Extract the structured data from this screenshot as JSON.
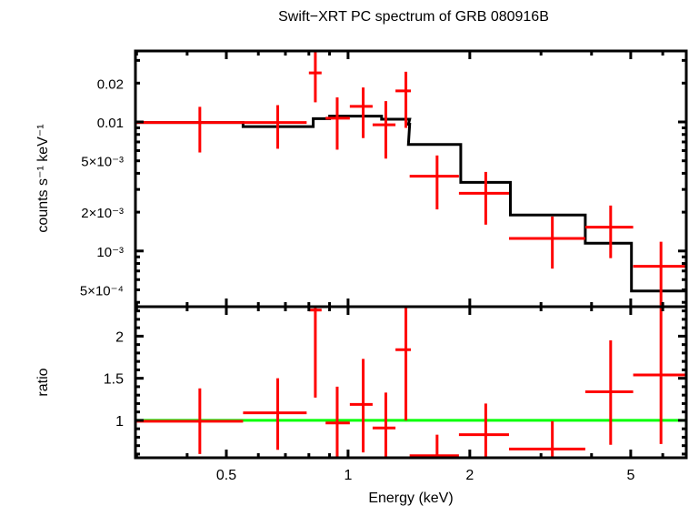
{
  "chart_data": [
    {
      "panel": "spectrum",
      "type": "scatter",
      "title": "Swift−XRT PC spectrum of GRB 080916B",
      "xlabel": "Energy (keV)",
      "ylabel": "counts s⁻¹ keV⁻¹",
      "xscale": "log",
      "yscale": "log",
      "xlim": [
        0.298,
        6.86
      ],
      "ylim": [
        0.00037,
        0.0355
      ],
      "yticks": [
        {
          "value": 0.02,
          "label": "0.02"
        },
        {
          "value": 0.01,
          "label": "0.01"
        },
        {
          "value": 0.005,
          "label": "5×10⁻³"
        },
        {
          "value": 0.002,
          "label": "2×10⁻³"
        },
        {
          "value": 0.001,
          "label": "10⁻³"
        },
        {
          "value": 0.0005,
          "label": "5×10⁻⁴"
        }
      ],
      "series": [
        {
          "name": "data",
          "color": "#ff0000",
          "points": [
            {
              "x": 0.43,
              "xlo": 0.298,
              "xhi": 0.55,
              "y": 0.0099,
              "ylo": 0.0058,
              "yhi": 0.0131
            },
            {
              "x": 0.67,
              "xlo": 0.55,
              "xhi": 0.79,
              "y": 0.0099,
              "ylo": 0.0062,
              "yhi": 0.0135
            },
            {
              "x": 0.83,
              "xlo": 0.8,
              "xhi": 0.86,
              "y": 0.024,
              "ylo": 0.0142,
              "yhi": 0.0355
            },
            {
              "x": 0.94,
              "xlo": 0.88,
              "xhi": 1.01,
              "y": 0.0107,
              "ylo": 0.0061,
              "yhi": 0.0155
            },
            {
              "x": 1.09,
              "xlo": 1.01,
              "xhi": 1.15,
              "y": 0.0132,
              "ylo": 0.0075,
              "yhi": 0.0185
            },
            {
              "x": 1.24,
              "xlo": 1.15,
              "xhi": 1.31,
              "y": 0.0095,
              "ylo": 0.0052,
              "yhi": 0.0145
            },
            {
              "x": 1.39,
              "xlo": 1.31,
              "xhi": 1.43,
              "y": 0.0174,
              "ylo": 0.009,
              "yhi": 0.0245
            },
            {
              "x": 1.66,
              "xlo": 1.42,
              "xhi": 1.88,
              "y": 0.0038,
              "ylo": 0.0021,
              "yhi": 0.0055
            },
            {
              "x": 2.19,
              "xlo": 1.88,
              "xhi": 2.5,
              "y": 0.0028,
              "ylo": 0.0016,
              "yhi": 0.0041
            },
            {
              "x": 3.2,
              "xlo": 2.5,
              "xhi": 3.86,
              "y": 0.00125,
              "ylo": 0.00073,
              "yhi": 0.00185
            },
            {
              "x": 4.46,
              "xlo": 3.86,
              "xhi": 5.07,
              "y": 0.00153,
              "ylo": 0.00088,
              "yhi": 0.00225
            },
            {
              "x": 5.94,
              "xlo": 5.07,
              "xhi": 6.86,
              "y": 0.00076,
              "ylo": 0.00037,
              "yhi": 0.00118
            }
          ]
        },
        {
          "name": "model",
          "color": "#000000",
          "steps": [
            {
              "xlo": 0.298,
              "xhi": 0.55,
              "y": 0.0099
            },
            {
              "xlo": 0.55,
              "xhi": 0.82,
              "y": 0.0092
            },
            {
              "xlo": 0.82,
              "xhi": 0.9,
              "y": 0.0106
            },
            {
              "xlo": 0.9,
              "xhi": 1.21,
              "y": 0.0111
            },
            {
              "xlo": 1.21,
              "xhi": 1.42,
              "y": 0.0105
            },
            {
              "xlo": 1.42,
              "xhi": 1.41,
              "y": 0.0096
            },
            {
              "xlo": 1.41,
              "xhi": 1.9,
              "y": 0.0067
            },
            {
              "xlo": 1.9,
              "xhi": 2.52,
              "y": 0.0034
            },
            {
              "xlo": 2.52,
              "xhi": 3.86,
              "y": 0.0019
            },
            {
              "xlo": 3.86,
              "xhi": 5.02,
              "y": 0.00115
            },
            {
              "xlo": 5.02,
              "xhi": 6.86,
              "y": 0.00049
            }
          ]
        }
      ]
    },
    {
      "panel": "ratio",
      "type": "scatter",
      "xlabel": "Energy (keV)",
      "ylabel": "ratio",
      "xscale": "log",
      "xlim": [
        0.298,
        6.86
      ],
      "ylim": [
        0.556,
        2.35
      ],
      "xticks": [
        {
          "value": 0.5,
          "label": "0.5"
        },
        {
          "value": 1,
          "label": "1"
        },
        {
          "value": 2,
          "label": "2"
        },
        {
          "value": 5,
          "label": "5"
        }
      ],
      "yticks": [
        {
          "value": 2,
          "label": "2"
        },
        {
          "value": 1.5,
          "label": "1.5"
        },
        {
          "value": 1,
          "label": "1"
        }
      ],
      "reference_line": {
        "y": 1,
        "color": "#00ff00"
      },
      "series": [
        {
          "name": "ratio",
          "color": "#ff0000",
          "points": [
            {
              "x": 0.43,
              "xlo": 0.298,
              "xhi": 0.55,
              "y": 0.99,
              "ylo": 0.6,
              "yhi": 1.38
            },
            {
              "x": 0.67,
              "xlo": 0.55,
              "xhi": 0.79,
              "y": 1.09,
              "ylo": 0.65,
              "yhi": 1.5
            },
            {
              "x": 0.83,
              "xlo": 0.8,
              "xhi": 0.86,
              "y": 2.31,
              "ylo": 1.27,
              "yhi": 2.35
            },
            {
              "x": 0.94,
              "xlo": 0.88,
              "xhi": 1.01,
              "y": 0.97,
              "ylo": 0.556,
              "yhi": 1.4
            },
            {
              "x": 1.09,
              "xlo": 1.01,
              "xhi": 1.15,
              "y": 1.19,
              "ylo": 0.62,
              "yhi": 1.73
            },
            {
              "x": 1.24,
              "xlo": 1.15,
              "xhi": 1.31,
              "y": 0.91,
              "ylo": 0.556,
              "yhi": 1.33
            },
            {
              "x": 1.39,
              "xlo": 1.31,
              "xhi": 1.43,
              "y": 1.84,
              "ylo": 1.0,
              "yhi": 2.35
            },
            {
              "x": 1.66,
              "xlo": 1.42,
              "xhi": 1.88,
              "y": 0.58,
              "ylo": 0.556,
              "yhi": 0.83
            },
            {
              "x": 2.19,
              "xlo": 1.88,
              "xhi": 2.5,
              "y": 0.83,
              "ylo": 0.556,
              "yhi": 1.2
            },
            {
              "x": 3.2,
              "xlo": 2.5,
              "xhi": 3.86,
              "y": 0.66,
              "ylo": 0.556,
              "yhi": 0.99
            },
            {
              "x": 4.46,
              "xlo": 3.86,
              "xhi": 5.07,
              "y": 1.34,
              "ylo": 0.71,
              "yhi": 1.95
            },
            {
              "x": 5.94,
              "xlo": 5.07,
              "xhi": 6.86,
              "y": 1.54,
              "ylo": 0.72,
              "yhi": 2.35
            }
          ]
        }
      ]
    }
  ]
}
